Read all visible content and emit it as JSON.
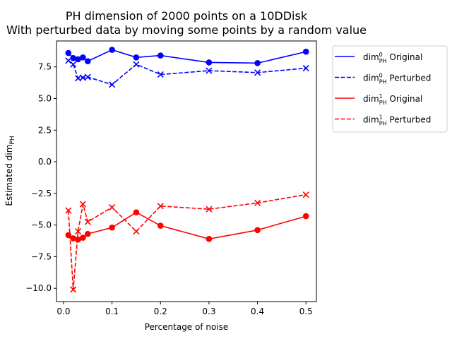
{
  "chart_data": {
    "type": "line",
    "title": "PH dimension of 2000 points on a 10DDisk",
    "subtitle": "With perturbed data by moving some points by a random value",
    "xlabel": "Percentage of noise",
    "ylabel_main": "Estimated dim",
    "ylabel_sub": "PH",
    "xlim": [
      -0.0145,
      0.5215
    ],
    "ylim": [
      -11.05,
      9.55
    ],
    "xticks": [
      0.0,
      0.1,
      0.2,
      0.3,
      0.4,
      0.5
    ],
    "xtick_labels": [
      "0.0",
      "0.1",
      "0.2",
      "0.3",
      "0.4",
      "0.5"
    ],
    "yticks": [
      -10.0,
      -7.5,
      -5.0,
      -2.5,
      0.0,
      2.5,
      5.0,
      7.5
    ],
    "ytick_labels": [
      "−10.0",
      "−7.5",
      "−5.0",
      "−2.5",
      "0.0",
      "2.5",
      "5.0",
      "7.5"
    ],
    "grid": false,
    "legend_position": "outside-right-top",
    "series": [
      {
        "name": "dim0PH Original",
        "legend_sup": "0",
        "legend_sub": "PH",
        "legend_suffix": " Original",
        "color": "#0000ff",
        "dash": "solid",
        "marker": "circle",
        "x": [
          0.01,
          0.02,
          0.03,
          0.04,
          0.05,
          0.1,
          0.15,
          0.2,
          0.3,
          0.4,
          0.5
        ],
        "y": [
          8.6,
          8.2,
          8.1,
          8.25,
          7.95,
          8.85,
          8.25,
          8.4,
          7.85,
          7.8,
          8.7
        ]
      },
      {
        "name": "dim0PH Perturbed",
        "legend_sup": "0",
        "legend_sub": "PH",
        "legend_suffix": " Perturbed",
        "color": "#0000ff",
        "dash": "dashed",
        "marker": "x",
        "x": [
          0.01,
          0.02,
          0.03,
          0.04,
          0.05,
          0.1,
          0.15,
          0.2,
          0.3,
          0.4,
          0.5
        ],
        "y": [
          8.0,
          7.7,
          6.6,
          6.65,
          6.7,
          6.1,
          7.7,
          6.9,
          7.2,
          7.05,
          7.4
        ]
      },
      {
        "name": "dim1PH Original",
        "legend_sup": "1",
        "legend_sub": "PH",
        "legend_suffix": " Original",
        "color": "#ff0000",
        "dash": "solid",
        "marker": "circle",
        "x": [
          0.01,
          0.02,
          0.03,
          0.04,
          0.05,
          0.1,
          0.15,
          0.2,
          0.3,
          0.4,
          0.5
        ],
        "y": [
          -5.8,
          -6.05,
          -6.15,
          -6.0,
          -5.7,
          -5.2,
          -4.0,
          -5.05,
          -6.1,
          -5.4,
          -4.3
        ]
      },
      {
        "name": "dim1PH Perturbed",
        "legend_sup": "1",
        "legend_sub": "PH",
        "legend_suffix": " Perturbed",
        "color": "#ff0000",
        "dash": "dashed",
        "marker": "x",
        "x": [
          0.01,
          0.02,
          0.03,
          0.04,
          0.05,
          0.1,
          0.15,
          0.2,
          0.3,
          0.4,
          0.5
        ],
        "y": [
          -3.85,
          -10.1,
          -5.5,
          -3.35,
          -4.75,
          -3.6,
          -5.5,
          -3.5,
          -3.75,
          -3.25,
          -2.6
        ]
      }
    ]
  }
}
